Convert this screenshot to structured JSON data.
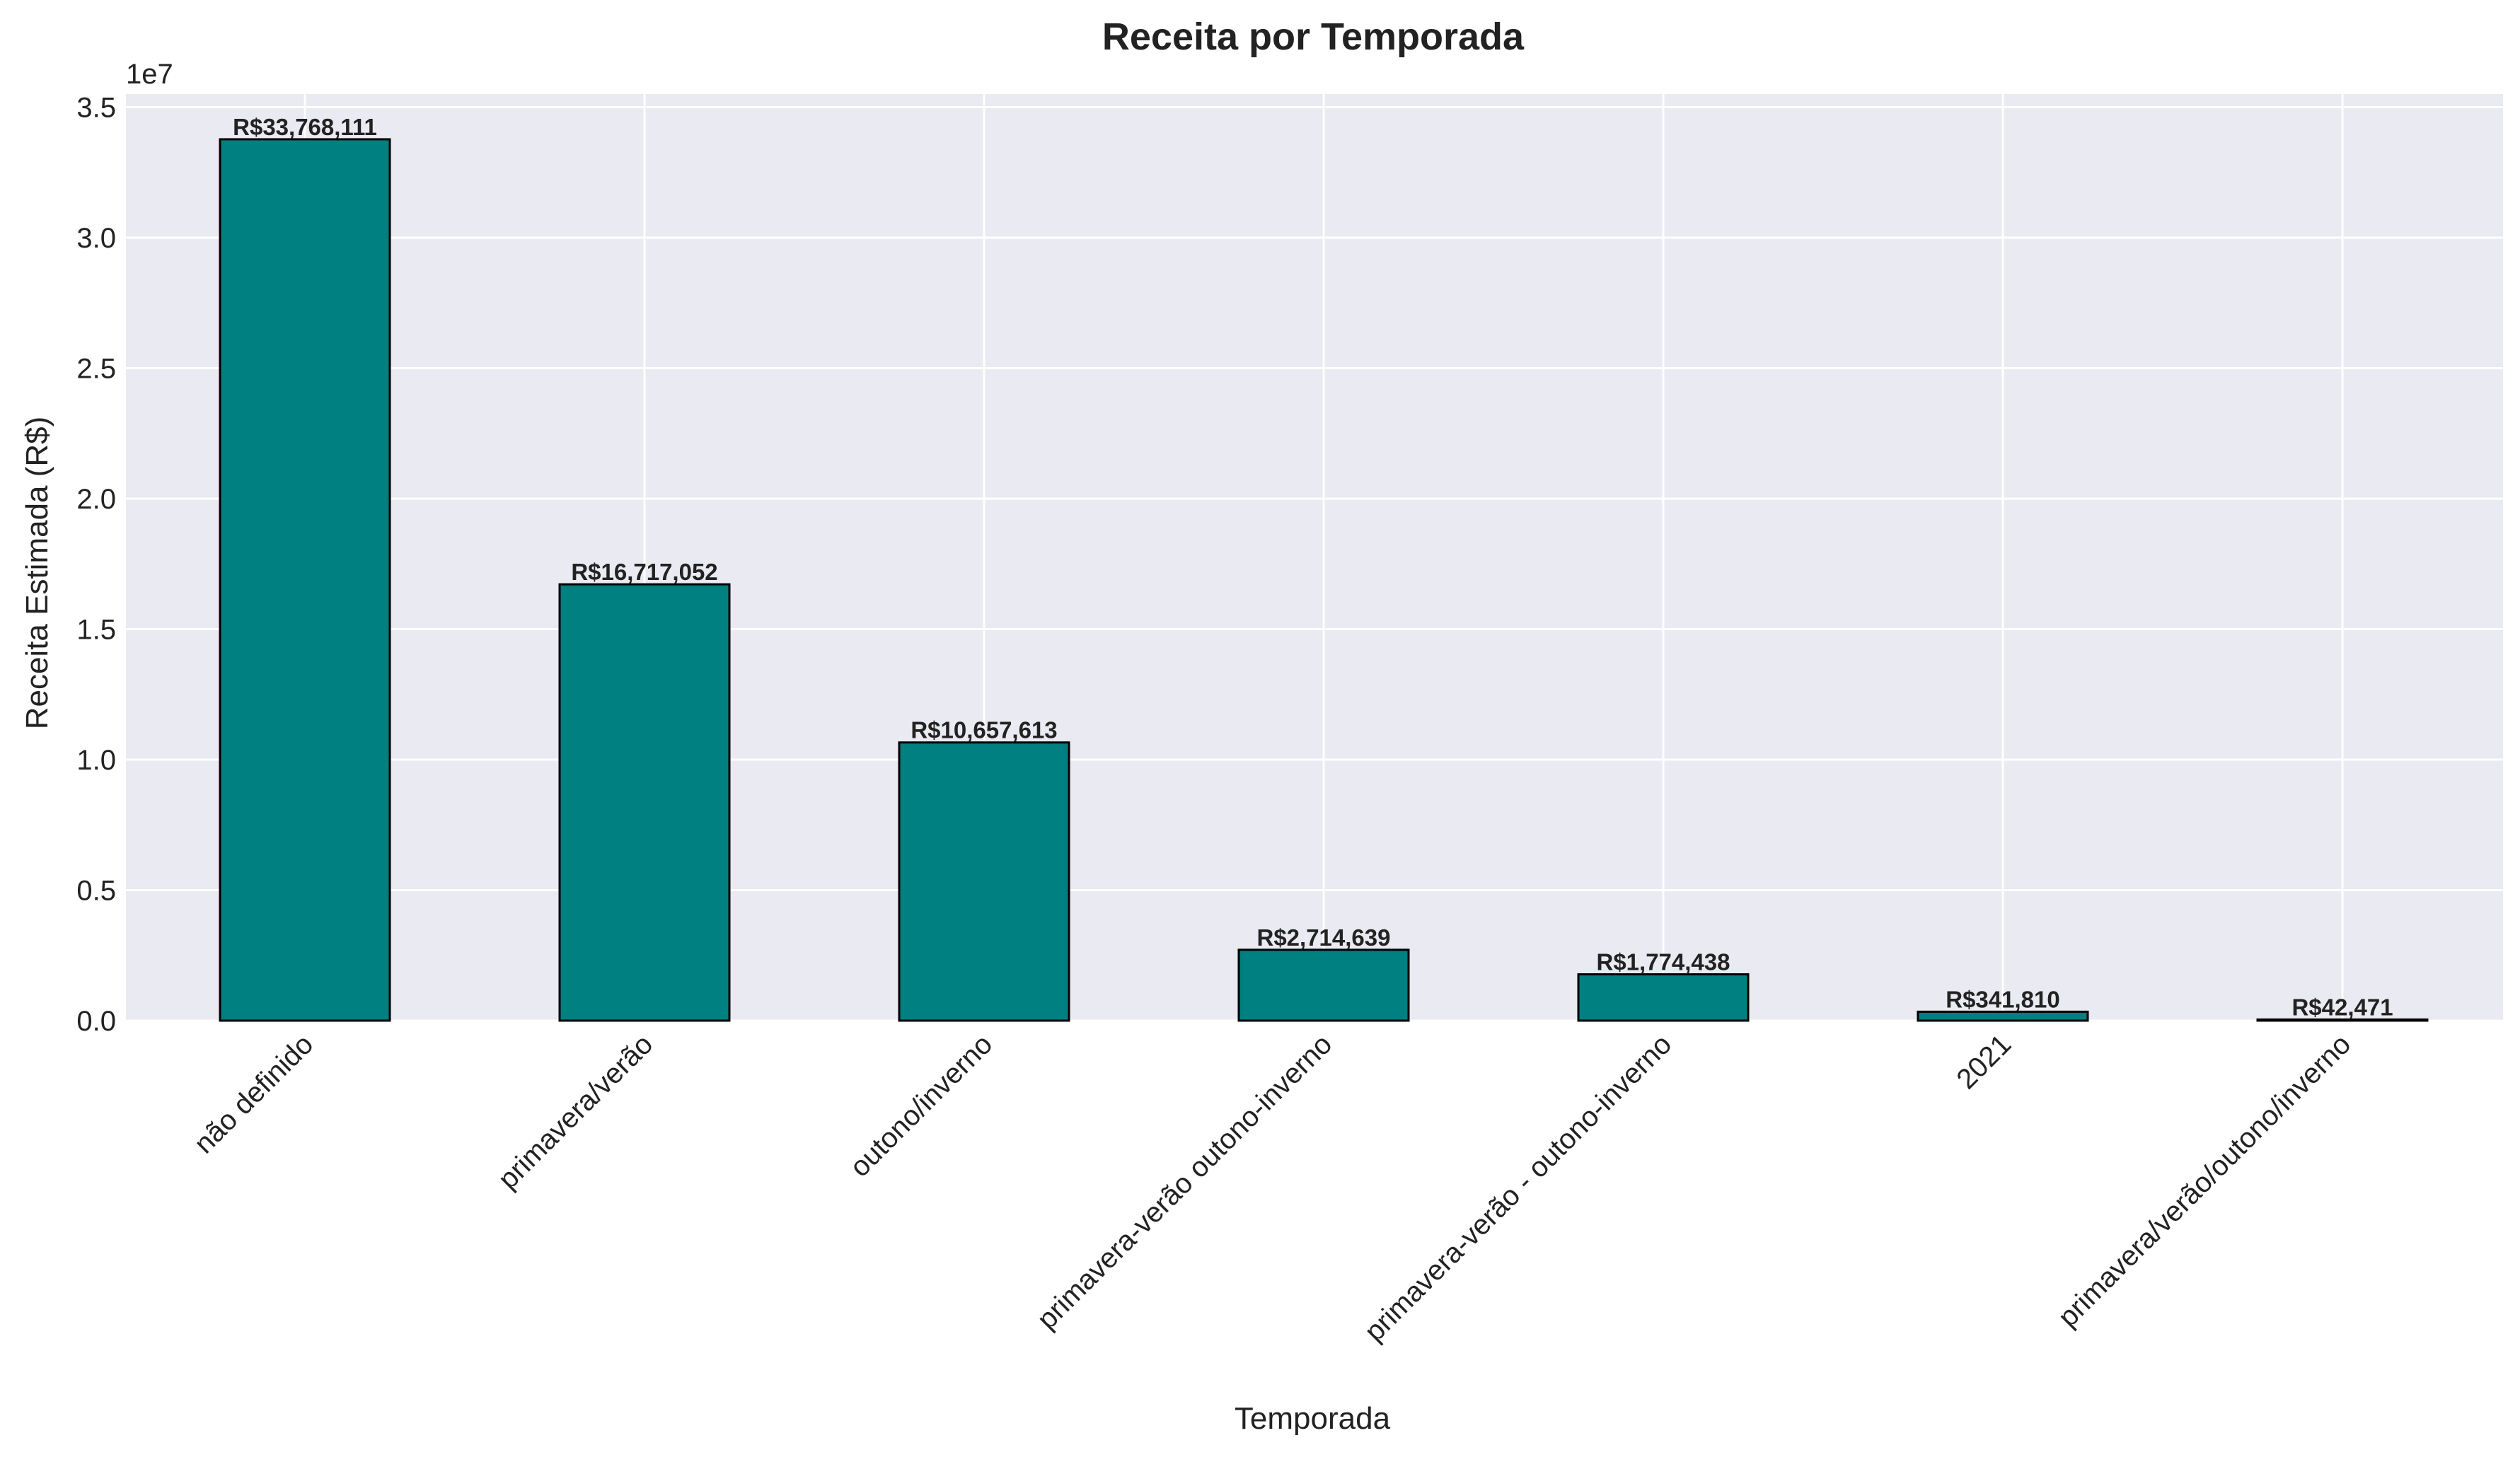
{
  "chart_data": {
    "type": "bar",
    "title": "Receita por Temporada",
    "xlabel": "Temporada",
    "ylabel": "Receita Estimada (R$)",
    "y_offset_label": "1e7",
    "y_scale": 10000000,
    "ylim": [
      0,
      35500000
    ],
    "yticks": [
      0,
      5000000,
      10000000,
      15000000,
      20000000,
      25000000,
      30000000,
      35000000
    ],
    "ytick_labels": [
      "0.0",
      "0.5",
      "1.0",
      "1.5",
      "2.0",
      "2.5",
      "3.0",
      "3.5"
    ],
    "grid": true,
    "bar_color": "#008080",
    "bar_edge_color": "#000000",
    "plot_background": "#eaeaf2",
    "categories": [
      "não definido",
      "primavera/verão",
      "outono/inverno",
      "primavera-verão outono-inverno",
      "primavera-verão - outono-inverno",
      "2021",
      "primavera/verão/outono/inverno"
    ],
    "values": [
      33768111,
      16717052,
      10657613,
      2714639,
      1774438,
      341810,
      42471
    ],
    "data_labels": [
      "R$33,768,111",
      "R$16,717,052",
      "R$10,657,613",
      "R$2,714,639",
      "R$1,774,438",
      "R$341,810",
      "R$42,471"
    ]
  }
}
